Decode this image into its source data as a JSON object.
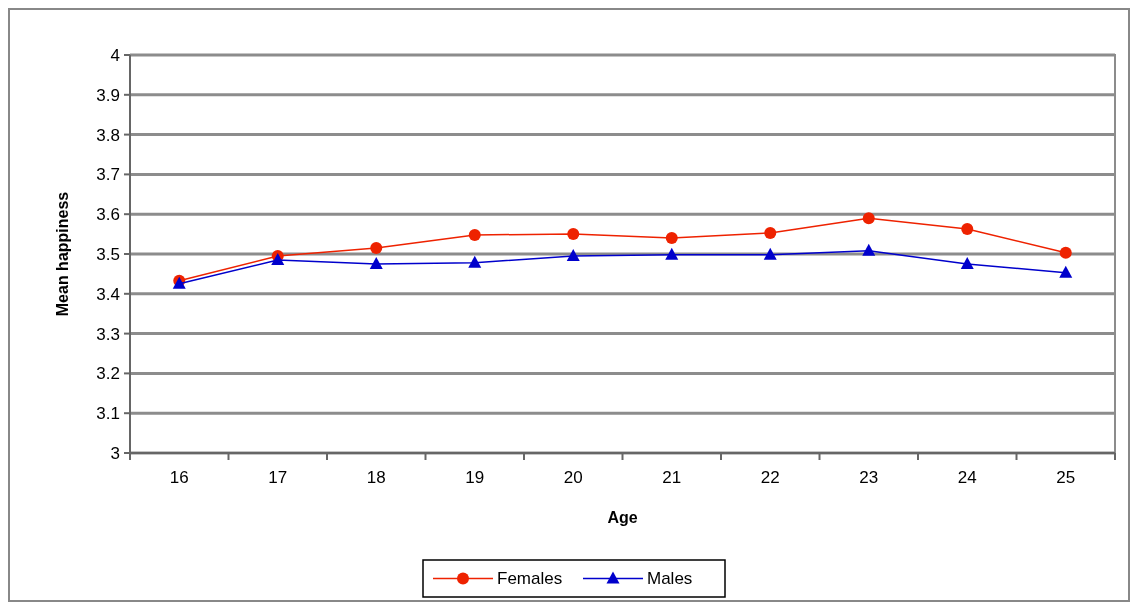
{
  "chart_data": {
    "type": "line",
    "xlabel": "Age",
    "ylabel": "Mean happiness",
    "categories": [
      "16",
      "17",
      "18",
      "19",
      "20",
      "21",
      "22",
      "23",
      "24",
      "25"
    ],
    "series": [
      {
        "name": "Females",
        "color": "#ee2200",
        "marker": "circle",
        "values": [
          3.433,
          3.495,
          3.515,
          3.548,
          3.55,
          3.54,
          3.553,
          3.59,
          3.563,
          3.503
        ]
      },
      {
        "name": "Males",
        "color": "#0000cc",
        "marker": "triangle",
        "values": [
          3.425,
          3.485,
          3.475,
          3.478,
          3.495,
          3.498,
          3.498,
          3.508,
          3.475,
          3.453
        ]
      }
    ],
    "ylim": [
      3,
      4
    ],
    "yticks": [
      3,
      3.1,
      3.2,
      3.3,
      3.4,
      3.5,
      3.6,
      3.7,
      3.8,
      3.9,
      4
    ],
    "grid": "y",
    "legend": "bottom",
    "line_style": "solid"
  }
}
